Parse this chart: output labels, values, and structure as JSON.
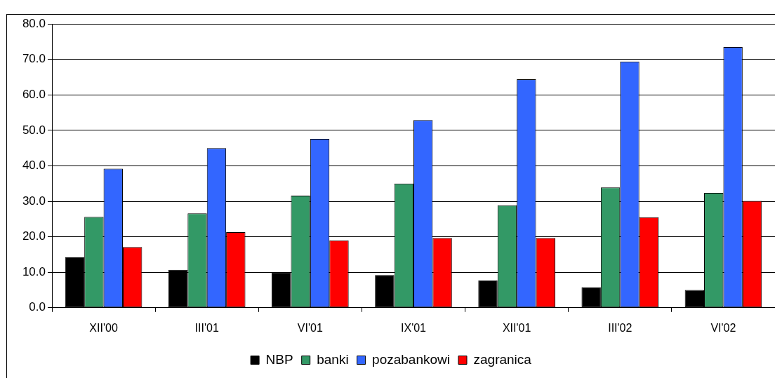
{
  "chart_data": {
    "type": "bar",
    "categories": [
      "XII'00",
      "III'01",
      "VI'01",
      "IX'01",
      "XII'01",
      "III'02",
      "VI'02"
    ],
    "series": [
      {
        "name": "NBP",
        "color": "#000000",
        "values": [
          14.2,
          10.7,
          10.0,
          9.2,
          7.7,
          5.8,
          5.0
        ]
      },
      {
        "name": "banki",
        "color": "#339966",
        "values": [
          25.6,
          26.6,
          31.6,
          35.0,
          28.9,
          33.9,
          32.4
        ]
      },
      {
        "name": "pozabankowi",
        "color": "#3366ff",
        "values": [
          39.2,
          45.0,
          47.6,
          52.9,
          64.4,
          69.4,
          73.5
        ]
      },
      {
        "name": "zagranica",
        "color": "#ff0000",
        "values": [
          17.1,
          21.3,
          19.0,
          19.7,
          19.7,
          25.5,
          30.1
        ]
      }
    ],
    "ylim": [
      0,
      80
    ],
    "yticks": [
      {
        "value": 0,
        "label": "0.0"
      },
      {
        "value": 10,
        "label": "10.0"
      },
      {
        "value": 20,
        "label": "20.0"
      },
      {
        "value": 30,
        "label": "30.0"
      },
      {
        "value": 40,
        "label": "40.0"
      },
      {
        "value": 50,
        "label": "50.0"
      },
      {
        "value": 60,
        "label": "60.0"
      },
      {
        "value": 70,
        "label": "70.0"
      },
      {
        "value": 80,
        "label": "80.0"
      }
    ],
    "grid": "y",
    "legend": "bottom"
  }
}
